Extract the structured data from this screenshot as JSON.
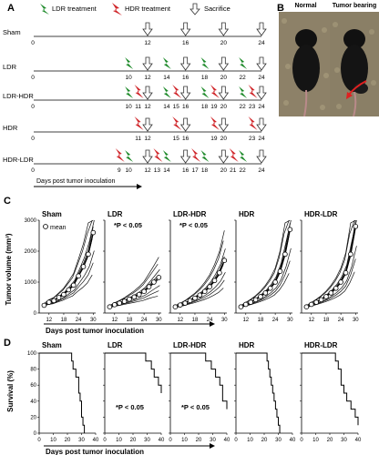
{
  "panels": {
    "A": {
      "letter": "A",
      "legend": {
        "ldr": "LDR treatment",
        "hdr": "HDR treatment",
        "sacrifice": "Sacrifice"
      },
      "xlabel": "Days post tumor inoculation",
      "rows": [
        {
          "name": "Sham",
          "ldr": [],
          "hdr": [],
          "sacrifice": [
            12,
            16,
            20,
            24
          ]
        },
        {
          "name": "LDR",
          "ldr": [
            10,
            14,
            18,
            22
          ],
          "hdr": [],
          "sacrifice": [
            12,
            16,
            20,
            24
          ]
        },
        {
          "name": "LDR-HDR",
          "ldr": [
            10,
            14,
            18,
            22
          ],
          "hdr": [
            11,
            15,
            19,
            23
          ],
          "sacrifice": [
            12,
            16,
            20,
            24
          ]
        },
        {
          "name": "HDR",
          "ldr": [],
          "hdr": [
            11,
            15,
            19,
            23
          ],
          "sacrifice": [
            12,
            16,
            20,
            24
          ]
        },
        {
          "name": "HDR-LDR",
          "ldr": [
            10,
            14,
            18,
            22
          ],
          "hdr": [
            9,
            13,
            17,
            21
          ],
          "sacrifice": [
            12,
            16,
            20,
            24
          ]
        }
      ]
    },
    "B": {
      "letter": "B",
      "normal_label": "Normal",
      "tumor_label": "Tumor bearing"
    },
    "C": {
      "letter": "C",
      "ylabel": "Tumor volume (mm³)",
      "xlabel": "Days post tumor inoculation",
      "legend_mean": "mean",
      "pvalue_text": "*P < 0.05"
    },
    "D": {
      "letter": "D",
      "ylabel": "Survival (%)",
      "xlabel": "Days post tumor inoculation",
      "pvalue_text": "*P < 0.05"
    }
  },
  "chart_data": [
    {
      "type": "line",
      "panel": "C",
      "ylabel": "Tumor volume (mm³)",
      "xlabel": "Days post tumor inoculation",
      "xticks": [
        12,
        18,
        24,
        30
      ],
      "yticks": [
        0,
        1000,
        2000,
        3000
      ],
      "ylim": [
        0,
        3000
      ],
      "xlim": [
        8,
        31
      ],
      "subplots": [
        {
          "title": "Sham",
          "significant": false,
          "mean": {
            "x": [
              10,
              12,
              14,
              16,
              18,
              20,
              22,
              24,
              26,
              28,
              30
            ],
            "y": [
              250,
              350,
              400,
              500,
              600,
              750,
              900,
              1200,
              1500,
              1900,
              2600
            ]
          }
        },
        {
          "title": "LDR",
          "significant": true,
          "mean": {
            "x": [
              10,
              12,
              14,
              16,
              18,
              20,
              22,
              24,
              26,
              28,
              30
            ],
            "y": [
              200,
              270,
              320,
              380,
              450,
              520,
              600,
              700,
              850,
              1000,
              1150
            ]
          }
        },
        {
          "title": "LDR-HDR",
          "significant": true,
          "mean": {
            "x": [
              10,
              12,
              14,
              16,
              18,
              20,
              22,
              24,
              26,
              28,
              30
            ],
            "y": [
              200,
              260,
              320,
              400,
              480,
              580,
              700,
              850,
              1050,
              1300,
              1700
            ]
          }
        },
        {
          "title": "HDR",
          "significant": false,
          "mean": {
            "x": [
              10,
              12,
              14,
              16,
              18,
              20,
              22,
              24,
              26,
              28,
              30
            ],
            "y": [
              200,
              280,
              350,
              430,
              530,
              650,
              800,
              1000,
              1350,
              1900,
              2700
            ]
          }
        },
        {
          "title": "HDR-LDR",
          "significant": false,
          "mean": {
            "x": [
              10,
              12,
              14,
              16,
              18,
              20,
              22,
              24,
              26,
              28,
              30
            ],
            "y": [
              200,
              280,
              350,
              430,
              530,
              650,
              800,
              1000,
              1300,
              1900,
              2800
            ]
          }
        }
      ]
    },
    {
      "type": "line",
      "panel": "D",
      "ylabel": "Survival (%)",
      "xlabel": "Days post tumor inoculation",
      "xticks": [
        0,
        10,
        20,
        30,
        40
      ],
      "yticks": [
        0,
        20,
        40,
        60,
        80,
        100
      ],
      "ylim": [
        0,
        100
      ],
      "xlim": [
        0,
        40
      ],
      "subplots": [
        {
          "title": "Sham",
          "significant": false,
          "steps": {
            "x": [
              0,
              23,
              24,
              26,
              28,
              29,
              30,
              31,
              32
            ],
            "y": [
              100,
              90,
              80,
              70,
              50,
              40,
              20,
              10,
              0
            ]
          }
        },
        {
          "title": "LDR",
          "significant": true,
          "steps": {
            "x": [
              0,
              29,
              33,
              35,
              38,
              40
            ],
            "y": [
              100,
              90,
              80,
              70,
              60,
              50
            ]
          }
        },
        {
          "title": "LDR-HDR",
          "significant": true,
          "steps": {
            "x": [
              0,
              25,
              29,
              32,
              35,
              37,
              40
            ],
            "y": [
              100,
              90,
              80,
              70,
              60,
              40,
              30
            ]
          }
        },
        {
          "title": "HDR",
          "significant": false,
          "steps": {
            "x": [
              0,
              22,
              23,
              24,
              25,
              26,
              27,
              28,
              29,
              30,
              31
            ],
            "y": [
              100,
              90,
              80,
              70,
              60,
              50,
              40,
              30,
              20,
              10,
              0
            ]
          }
        },
        {
          "title": "HDR-LDR",
          "significant": false,
          "steps": {
            "x": [
              0,
              24,
              26,
              28,
              30,
              32,
              35,
              38,
              40
            ],
            "y": [
              100,
              90,
              80,
              60,
              50,
              40,
              30,
              20,
              10
            ]
          }
        }
      ]
    }
  ]
}
